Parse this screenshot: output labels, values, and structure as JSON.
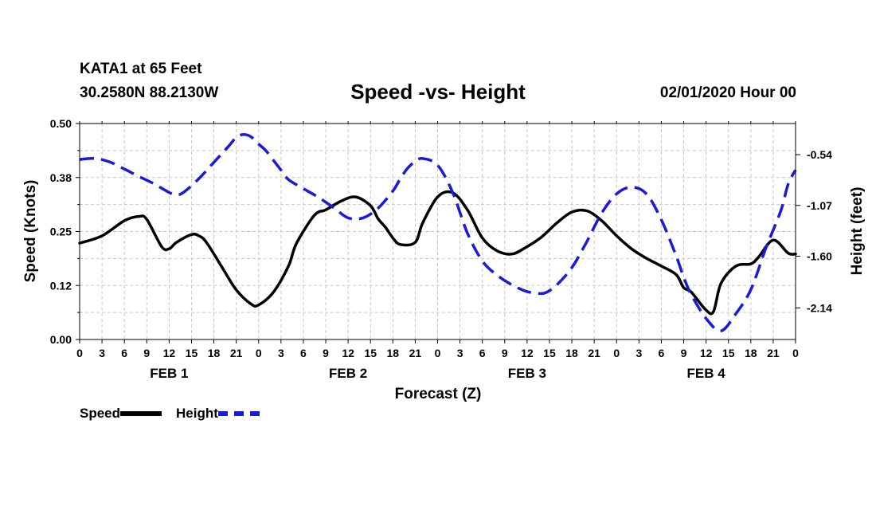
{
  "header": {
    "station": "KATA1 at 65 Feet",
    "coords": "30.2580N 88.2130W",
    "title": "Speed -vs- Height",
    "timestamp": "02/01/2020 Hour 00"
  },
  "legend": {
    "speed_label": "Speed",
    "height_label": "Height"
  },
  "colors": {
    "speed": "#000000",
    "height": "#1a1adb",
    "grid": "#c8c8c8"
  },
  "chart_data": {
    "type": "line",
    "title": "Speed -vs- Height",
    "xlabel": "Forecast (Z)",
    "ylabel": "Speed (Knots)",
    "y2label": "Height (feet)",
    "xlim": [
      0,
      96
    ],
    "ylim": [
      0,
      0.5
    ],
    "y2lim": [
      -2.47,
      -0.215
    ],
    "yticks": [
      "0.00",
      "0.12",
      "0.25",
      "0.38",
      "0.50"
    ],
    "y2ticks": [
      "-0.54",
      "-1.07",
      "-1.60",
      "-2.14"
    ],
    "y2tick_values": [
      -0.54,
      -1.07,
      -1.6,
      -2.14
    ],
    "xtick_hours": [
      0,
      3,
      6,
      9,
      12,
      15,
      18,
      21,
      24,
      27,
      30,
      33,
      36,
      39,
      42,
      45,
      48,
      51,
      54,
      57,
      60,
      63,
      66,
      69,
      72,
      75,
      78,
      81,
      84,
      87,
      90,
      93,
      96
    ],
    "xtick_labels": [
      "0",
      "3",
      "6",
      "9",
      "12",
      "15",
      "18",
      "21",
      "0",
      "3",
      "6",
      "9",
      "12",
      "15",
      "18",
      "21",
      "0",
      "3",
      "6",
      "9",
      "12",
      "15",
      "18",
      "21",
      "0",
      "3",
      "6",
      "9",
      "12",
      "15",
      "18",
      "21",
      "0"
    ],
    "day_labels": [
      {
        "hour": 12,
        "label": "FEB 1"
      },
      {
        "hour": 36,
        "label": "FEB 2"
      },
      {
        "hour": 60,
        "label": "FEB 3"
      },
      {
        "hour": 84,
        "label": "FEB 4"
      }
    ],
    "grid": true,
    "series": [
      {
        "name": "Speed",
        "axis": "left",
        "x": [
          0,
          3,
          6,
          8,
          9,
          11,
          12,
          13,
          15,
          16,
          17,
          19,
          21,
          23,
          24,
          26,
          28,
          29,
          31,
          32,
          33,
          35,
          37,
          39,
          40,
          41,
          42,
          43,
          45,
          46,
          48,
          50,
          52,
          54,
          56,
          58,
          60,
          62,
          64,
          66,
          68,
          70,
          72,
          74,
          76,
          78,
          80,
          81,
          82,
          84,
          85,
          86,
          88,
          90,
          91,
          93,
          95,
          96
        ],
        "values": [
          0.223,
          0.24,
          0.275,
          0.285,
          0.278,
          0.215,
          0.21,
          0.225,
          0.243,
          0.24,
          0.225,
          0.17,
          0.115,
          0.082,
          0.08,
          0.11,
          0.17,
          0.22,
          0.277,
          0.295,
          0.3,
          0.32,
          0.33,
          0.31,
          0.28,
          0.26,
          0.235,
          0.22,
          0.225,
          0.27,
          0.33,
          0.34,
          0.3,
          0.235,
          0.205,
          0.198,
          0.215,
          0.238,
          0.27,
          0.295,
          0.298,
          0.275,
          0.24,
          0.21,
          0.188,
          0.17,
          0.15,
          0.12,
          0.11,
          0.068,
          0.065,
          0.13,
          0.17,
          0.175,
          0.19,
          0.23,
          0.2,
          0.198
        ]
      },
      {
        "name": "Height",
        "axis": "right",
        "x": [
          0,
          2,
          4,
          6,
          8,
          10,
          12,
          13,
          14,
          16,
          18,
          20,
          21,
          22,
          23,
          24,
          25,
          26,
          27,
          28,
          30,
          32,
          34,
          36,
          38,
          40,
          42,
          43,
          44,
          45,
          46,
          48,
          50,
          52,
          54,
          56,
          58,
          60,
          62,
          63,
          64,
          66,
          68,
          70,
          72,
          74,
          76,
          78,
          80,
          81,
          82,
          84,
          86,
          88,
          90,
          92,
          94,
          95,
          96
        ],
        "values": [
          -0.59,
          -0.58,
          -0.615,
          -0.69,
          -0.77,
          -0.845,
          -0.935,
          -0.96,
          -0.93,
          -0.79,
          -0.62,
          -0.45,
          -0.36,
          -0.33,
          -0.355,
          -0.43,
          -0.5,
          -0.6,
          -0.7,
          -0.8,
          -0.895,
          -0.985,
          -1.09,
          -1.2,
          -1.2,
          -1.1,
          -0.92,
          -0.79,
          -0.68,
          -0.61,
          -0.58,
          -0.65,
          -0.93,
          -1.36,
          -1.65,
          -1.8,
          -1.9,
          -1.97,
          -1.99,
          -1.96,
          -1.9,
          -1.72,
          -1.45,
          -1.15,
          -0.95,
          -0.88,
          -0.95,
          -1.22,
          -1.6,
          -1.82,
          -2.0,
          -2.25,
          -2.38,
          -2.2,
          -1.95,
          -1.52,
          -1.13,
          -0.85,
          -0.7
        ]
      }
    ]
  }
}
